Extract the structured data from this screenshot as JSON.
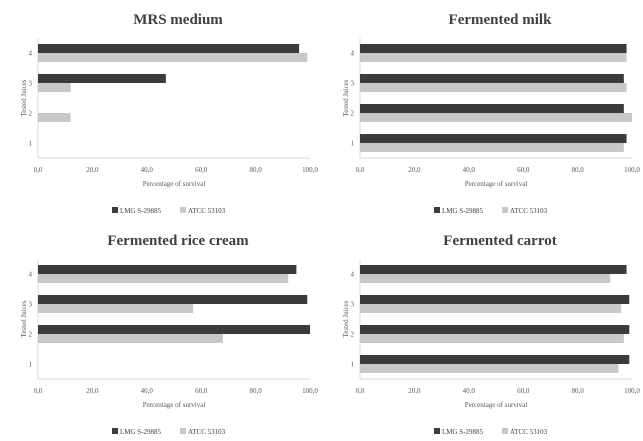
{
  "colors": {
    "lmg": "#3b3b3b",
    "atcc": "#c8c8c8",
    "axis": "#d9d9d9",
    "text": "#595959"
  },
  "chart_data": [
    {
      "type": "bar",
      "orientation": "horizontal",
      "title": "MRS medium",
      "xlabel": "Percentage of survival",
      "ylabel": "Tested Juices",
      "categories": [
        "1",
        "2",
        "3",
        "4"
      ],
      "xlim": [
        0,
        100
      ],
      "xticks": [
        "0,0",
        "20,0",
        "40,0",
        "60,0",
        "80,0",
        "100,0"
      ],
      "legend_position": "bottom",
      "series": [
        {
          "name": "LMG S-29885",
          "values": [
            0,
            0,
            47,
            96
          ]
        },
        {
          "name": "ATCC 53103",
          "values": [
            0,
            12,
            12,
            99
          ]
        }
      ]
    },
    {
      "type": "bar",
      "orientation": "horizontal",
      "title": "Fermented milk",
      "xlabel": "Percentage of survival",
      "ylabel": "Tested Juices",
      "categories": [
        "1",
        "2",
        "3",
        "4"
      ],
      "xlim": [
        0,
        100
      ],
      "xticks": [
        "0,0",
        "20,0",
        "40,0",
        "60,0",
        "80,0",
        "100,0"
      ],
      "legend_position": "bottom",
      "series": [
        {
          "name": "LMG S-29885",
          "values": [
            98,
            97,
            97,
            98
          ]
        },
        {
          "name": "ATCC 53103",
          "values": [
            97,
            100,
            98,
            98
          ]
        }
      ]
    },
    {
      "type": "bar",
      "orientation": "horizontal",
      "title": "Fermented rice cream",
      "xlabel": "Percentage of survival",
      "ylabel": "Tested Juices",
      "categories": [
        "1",
        "2",
        "3",
        "4"
      ],
      "xlim": [
        0,
        100
      ],
      "xticks": [
        "0,0",
        "20,0",
        "40,0",
        "60,0",
        "80,0",
        "100,0"
      ],
      "legend_position": "bottom",
      "series": [
        {
          "name": "LMG S-29885",
          "values": [
            0,
            100,
            99,
            95
          ]
        },
        {
          "name": "ATCC 53103",
          "values": [
            0,
            68,
            57,
            92
          ]
        }
      ]
    },
    {
      "type": "bar",
      "orientation": "horizontal",
      "title": "Fermented carrot",
      "xlabel": "Percentage of survival",
      "ylabel": "Tested Juices",
      "categories": [
        "1",
        "2",
        "3",
        "4"
      ],
      "xlim": [
        0,
        100
      ],
      "xticks": [
        "0,0",
        "20,0",
        "40,0",
        "60,0",
        "80,0",
        "100,0"
      ],
      "legend_position": "bottom",
      "series": [
        {
          "name": "LMG S-29885",
          "values": [
            99,
            99,
            99,
            98
          ]
        },
        {
          "name": "ATCC 53103",
          "values": [
            95,
            97,
            96,
            92
          ]
        }
      ]
    }
  ]
}
